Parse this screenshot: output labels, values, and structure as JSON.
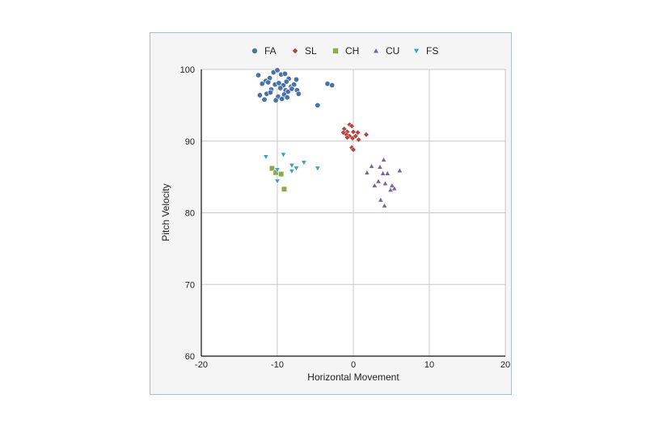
{
  "chart_data": {
    "type": "scatter",
    "title": "",
    "xlabel": "Horizontal Movement",
    "ylabel": "Pitch Velocity",
    "xlim": [
      -20,
      20
    ],
    "ylim": [
      60,
      100
    ],
    "xticks": [
      -20,
      -10,
      0,
      10,
      20
    ],
    "yticks": [
      60,
      70,
      80,
      90,
      100
    ],
    "grid": true,
    "legend_position": "top",
    "series": [
      {
        "name": "FA",
        "marker": "circle",
        "color": "#4a72a8",
        "points": [
          [
            -12.5,
            99.2
          ],
          [
            -11.5,
            98.4
          ],
          [
            -11,
            98.8
          ],
          [
            -10.5,
            99.6
          ],
          [
            -10,
            99.9
          ],
          [
            -9.5,
            99.3
          ],
          [
            -9,
            99.4
          ],
          [
            -8.5,
            98.7
          ],
          [
            -7.5,
            98.6
          ],
          [
            -12,
            98
          ],
          [
            -11.2,
            98.2
          ],
          [
            -10.3,
            97.9
          ],
          [
            -9.8,
            98.1
          ],
          [
            -9.2,
            97.8
          ],
          [
            -8.8,
            98.3
          ],
          [
            -8.2,
            97.6
          ],
          [
            -7.8,
            97.9
          ],
          [
            -10.8,
            97.2
          ],
          [
            -9.6,
            97.4
          ],
          [
            -8.9,
            97.1
          ],
          [
            -8.6,
            96.9
          ],
          [
            -8.1,
            97.3
          ],
          [
            -7.4,
            97.1
          ],
          [
            -12.3,
            96.4
          ],
          [
            -11.4,
            96.6
          ],
          [
            -10.9,
            96.8
          ],
          [
            -9.9,
            96.2
          ],
          [
            -9.1,
            96.5
          ],
          [
            -7.2,
            96.6
          ],
          [
            -11.7,
            95.8
          ],
          [
            -10.2,
            95.7
          ],
          [
            -9.4,
            95.9
          ],
          [
            -8.7,
            96.1
          ],
          [
            -3.4,
            98
          ],
          [
            -2.8,
            97.8
          ],
          [
            -4.7,
            95
          ]
        ]
      },
      {
        "name": "SL",
        "marker": "diamond",
        "color": "#b5433f",
        "points": [
          [
            -0.5,
            92.3
          ],
          [
            -0.2,
            92.1
          ],
          [
            -1.2,
            91.7
          ],
          [
            -0.8,
            91.3
          ],
          [
            0,
            91.3
          ],
          [
            0.6,
            91.2
          ],
          [
            -1.3,
            91.2
          ],
          [
            -0.9,
            90.9
          ],
          [
            -0.5,
            90.7
          ],
          [
            0.3,
            90.7
          ],
          [
            1.7,
            90.9
          ],
          [
            -0.1,
            90.4
          ],
          [
            0.7,
            90.2
          ],
          [
            -0.8,
            90.5
          ],
          [
            -0.2,
            89.1
          ],
          [
            0,
            88.8
          ]
        ]
      },
      {
        "name": "CH",
        "marker": "square",
        "color": "#8aab4a",
        "points": [
          [
            -10.7,
            86.2
          ],
          [
            -10.2,
            85.6
          ],
          [
            -9.5,
            85.4
          ],
          [
            -9.1,
            83.3
          ]
        ]
      },
      {
        "name": "CU",
        "marker": "triangle-up",
        "color": "#7a62a6",
        "points": [
          [
            4,
            87.4
          ],
          [
            2.4,
            86.5
          ],
          [
            3.5,
            86.4
          ],
          [
            6.1,
            85.9
          ],
          [
            1.8,
            85.6
          ],
          [
            3.9,
            85.5
          ],
          [
            4.5,
            85.5
          ],
          [
            3.3,
            84.4
          ],
          [
            4.2,
            84.1
          ],
          [
            5.1,
            83.8
          ],
          [
            2.8,
            83.8
          ],
          [
            4.9,
            83.2
          ],
          [
            5.4,
            83.4
          ],
          [
            3.6,
            81.8
          ],
          [
            4.1,
            81
          ]
        ]
      },
      {
        "name": "FS",
        "marker": "triangle-down",
        "color": "#3d9fc4",
        "points": [
          [
            -11.5,
            87.8
          ],
          [
            -9.2,
            88.1
          ],
          [
            -10,
            86
          ],
          [
            -8.1,
            86.6
          ],
          [
            -6.5,
            87
          ],
          [
            -7.5,
            86.2
          ],
          [
            -8.1,
            85.8
          ],
          [
            -4.7,
            86.2
          ],
          [
            -10,
            84.4
          ]
        ]
      }
    ]
  }
}
